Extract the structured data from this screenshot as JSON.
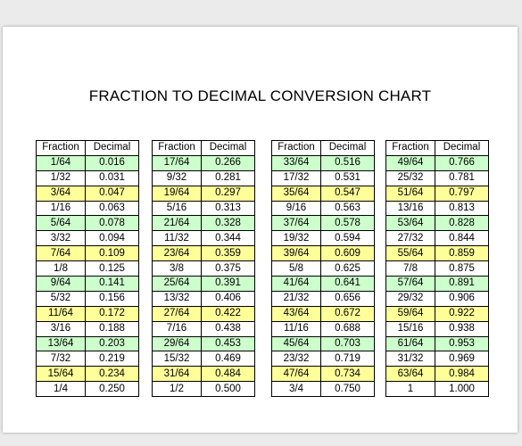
{
  "title": "FRACTION TO DECIMAL CONVERSION CHART",
  "headers": {
    "fraction": "Fraction",
    "decimal": "Decimal"
  },
  "colors": {
    "green_row": "#ccffcc",
    "yellow_row": "#ffff99",
    "white_row": "#ffffff"
  },
  "row_styles": [
    "g",
    "w",
    "y",
    "w",
    "g",
    "w",
    "y",
    "w",
    "g",
    "w",
    "y",
    "w",
    "g",
    "w",
    "y",
    "w"
  ],
  "tables": [
    {
      "rows": [
        {
          "f": "1/64",
          "d": "0.016"
        },
        {
          "f": "1/32",
          "d": "0.031"
        },
        {
          "f": "3/64",
          "d": "0.047"
        },
        {
          "f": "1/16",
          "d": "0.063"
        },
        {
          "f": "5/64",
          "d": "0.078"
        },
        {
          "f": "3/32",
          "d": "0.094"
        },
        {
          "f": "7/64",
          "d": "0.109"
        },
        {
          "f": "1/8",
          "d": "0.125"
        },
        {
          "f": "9/64",
          "d": "0.141"
        },
        {
          "f": "5/32",
          "d": "0.156"
        },
        {
          "f": "11/64",
          "d": "0.172"
        },
        {
          "f": "3/16",
          "d": "0.188"
        },
        {
          "f": "13/64",
          "d": "0.203"
        },
        {
          "f": "7/32",
          "d": "0.219"
        },
        {
          "f": "15/64",
          "d": "0.234"
        },
        {
          "f": "1/4",
          "d": "0.250"
        }
      ]
    },
    {
      "rows": [
        {
          "f": "17/64",
          "d": "0.266"
        },
        {
          "f": "9/32",
          "d": "0.281"
        },
        {
          "f": "19/64",
          "d": "0.297"
        },
        {
          "f": "5/16",
          "d": "0.313"
        },
        {
          "f": "21/64",
          "d": "0.328"
        },
        {
          "f": "11/32",
          "d": "0.344"
        },
        {
          "f": "23/64",
          "d": "0.359"
        },
        {
          "f": "3/8",
          "d": "0.375"
        },
        {
          "f": "25/64",
          "d": "0.391"
        },
        {
          "f": "13/32",
          "d": "0.406"
        },
        {
          "f": "27/64",
          "d": "0.422"
        },
        {
          "f": "7/16",
          "d": "0.438"
        },
        {
          "f": "29/64",
          "d": "0.453"
        },
        {
          "f": "15/32",
          "d": "0.469"
        },
        {
          "f": "31/64",
          "d": "0.484"
        },
        {
          "f": "1/2",
          "d": "0.500"
        }
      ]
    },
    {
      "rows": [
        {
          "f": "33/64",
          "d": "0.516"
        },
        {
          "f": "17/32",
          "d": "0.531"
        },
        {
          "f": "35/64",
          "d": "0.547"
        },
        {
          "f": "9/16",
          "d": "0.563"
        },
        {
          "f": "37/64",
          "d": "0.578"
        },
        {
          "f": "19/32",
          "d": "0.594"
        },
        {
          "f": "39/64",
          "d": "0.609"
        },
        {
          "f": "5/8",
          "d": "0.625"
        },
        {
          "f": "41/64",
          "d": "0.641"
        },
        {
          "f": "21/32",
          "d": "0.656"
        },
        {
          "f": "43/64",
          "d": "0.672"
        },
        {
          "f": "11/16",
          "d": "0.688"
        },
        {
          "f": "45/64",
          "d": "0.703"
        },
        {
          "f": "23/32",
          "d": "0.719"
        },
        {
          "f": "47/64",
          "d": "0.734"
        },
        {
          "f": "3/4",
          "d": "0.750"
        }
      ]
    },
    {
      "rows": [
        {
          "f": "49/64",
          "d": "0.766"
        },
        {
          "f": "25/32",
          "d": "0.781"
        },
        {
          "f": "51/64",
          "d": "0.797"
        },
        {
          "f": "13/16",
          "d": "0.813"
        },
        {
          "f": "53/64",
          "d": "0.828"
        },
        {
          "f": "27/32",
          "d": "0.844"
        },
        {
          "f": "55/64",
          "d": "0.859"
        },
        {
          "f": "7/8",
          "d": "0.875"
        },
        {
          "f": "57/64",
          "d": "0.891"
        },
        {
          "f": "29/32",
          "d": "0.906"
        },
        {
          "f": "59/64",
          "d": "0.922"
        },
        {
          "f": "15/16",
          "d": "0.938"
        },
        {
          "f": "61/64",
          "d": "0.953"
        },
        {
          "f": "31/32",
          "d": "0.969"
        },
        {
          "f": "63/64",
          "d": "0.984"
        },
        {
          "f": "1",
          "d": "1.000"
        }
      ]
    }
  ]
}
